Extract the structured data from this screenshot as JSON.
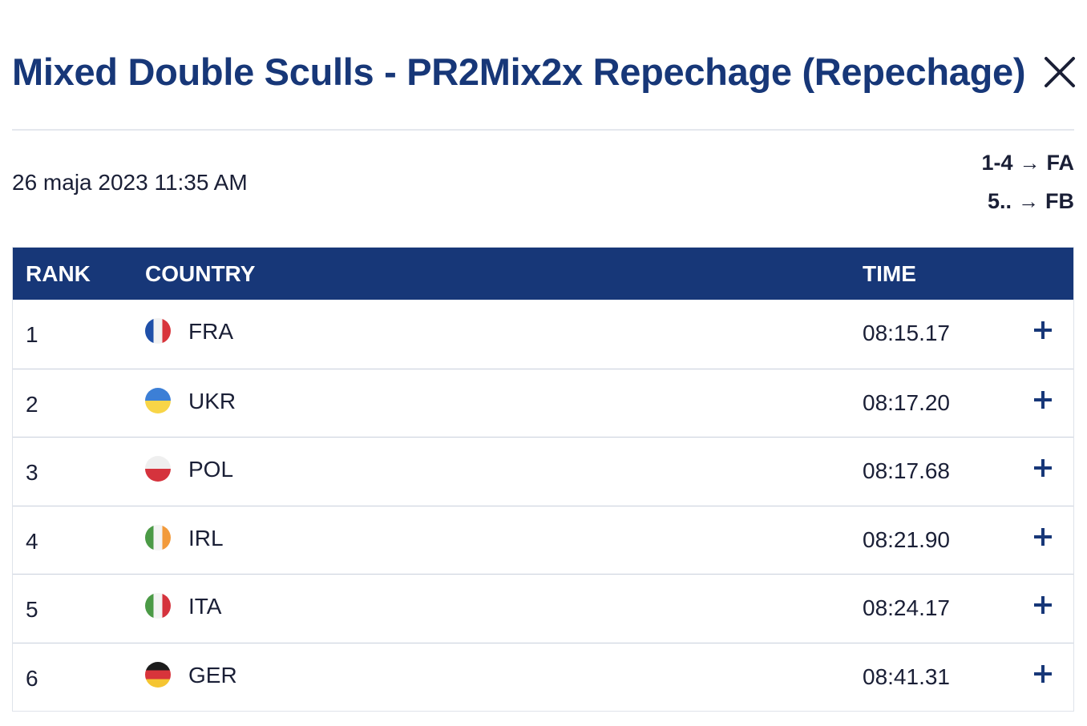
{
  "header": {
    "title": "Mixed Double Sculls - PR2Mix2x Repechage (Repechage)",
    "close_icon": "close-icon"
  },
  "event": {
    "datetime": "26 maja 2023 11:35 AM",
    "progression": [
      {
        "ranks": "1-4",
        "arrow": "→",
        "final": "FA"
      },
      {
        "ranks": "5..",
        "arrow": "→",
        "final": "FB"
      }
    ]
  },
  "table": {
    "columns": {
      "rank": "RANK",
      "country": "COUNTRY",
      "time": "TIME"
    },
    "rows": [
      {
        "rank": "1",
        "country": "FRA",
        "time": "08:15.17",
        "flag": [
          "#1f4fa8",
          "#f2f2f2",
          "#d8343b"
        ],
        "flag_dir": "v"
      },
      {
        "rank": "2",
        "country": "UKR",
        "time": "08:17.20",
        "flag": [
          "#3c7fd6",
          "#f8d547"
        ],
        "flag_dir": "h"
      },
      {
        "rank": "3",
        "country": "POL",
        "time": "08:17.68",
        "flag": [
          "#efefef",
          "#d5333d"
        ],
        "flag_dir": "h"
      },
      {
        "rank": "4",
        "country": "IRL",
        "time": "08:21.90",
        "flag": [
          "#4b9a46",
          "#f4f4f4",
          "#f29a3b"
        ],
        "flag_dir": "v"
      },
      {
        "rank": "5",
        "country": "ITA",
        "time": "08:24.17",
        "flag": [
          "#4b9a46",
          "#f4f4f4",
          "#d5333d"
        ],
        "flag_dir": "v"
      },
      {
        "rank": "6",
        "country": "GER",
        "time": "08:41.31",
        "flag": [
          "#1c1c1c",
          "#d8343b",
          "#f5c532"
        ],
        "flag_dir": "h"
      }
    ],
    "expand_icon": "plus-icon"
  },
  "colors": {
    "brand": "#173778",
    "text": "#1a1f36",
    "divider": "#e4e7ed",
    "row_border": "#c9d0dc"
  }
}
